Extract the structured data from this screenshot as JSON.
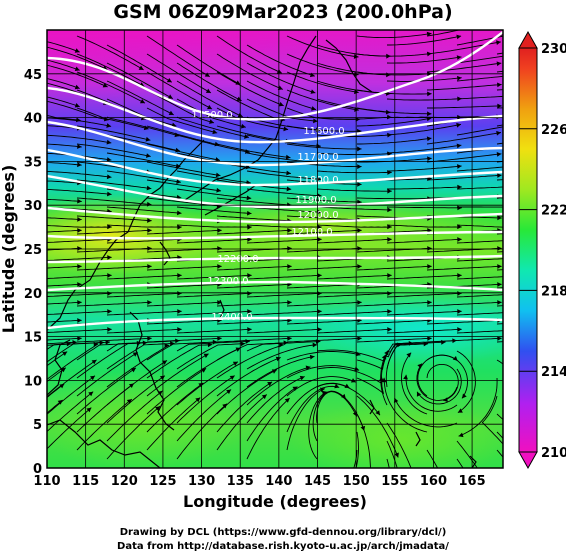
{
  "title": "GSM 06Z09Mar2023 (200.0hPa)",
  "map": {
    "xlabel": "Longitude (degrees)",
    "ylabel": "Latitude  (degrees)",
    "lon_range": [
      110,
      169
    ],
    "lat_range": [
      0,
      50
    ],
    "lon_ticks": [
      110,
      115,
      120,
      125,
      130,
      135,
      140,
      145,
      150,
      155,
      160,
      165
    ],
    "lat_ticks": [
      0,
      5,
      10,
      15,
      20,
      25,
      30,
      35,
      40,
      45
    ],
    "grid": true
  },
  "colorbar": {
    "label_ticks": [
      210,
      214,
      218,
      222,
      226,
      230
    ],
    "range": [
      210,
      230
    ],
    "colors": [
      "#f010c0",
      "#b020f0",
      "#3050f0",
      "#10c0f0",
      "#10e8b0",
      "#28e838",
      "#a0e820",
      "#f0e010",
      "#f0b010",
      "#f06020",
      "#e02020"
    ]
  },
  "contours": [
    {
      "label": "11500.0"
    },
    {
      "label": "11600.0"
    },
    {
      "label": "11700.0"
    },
    {
      "label": "11800.0"
    },
    {
      "label": "11900.0"
    },
    {
      "label": "12000.0"
    },
    {
      "label": "12100.0"
    },
    {
      "label": "12200.0"
    },
    {
      "label": "12300.0"
    },
    {
      "label": "12400.0"
    }
  ],
  "credits": [
    "Drawing by DCL (https://www.gfd-dennou.org/library/dcl/)",
    "Data from http://database.rish.kyoto-u.ac.jp/arch/jmadata/"
  ]
}
